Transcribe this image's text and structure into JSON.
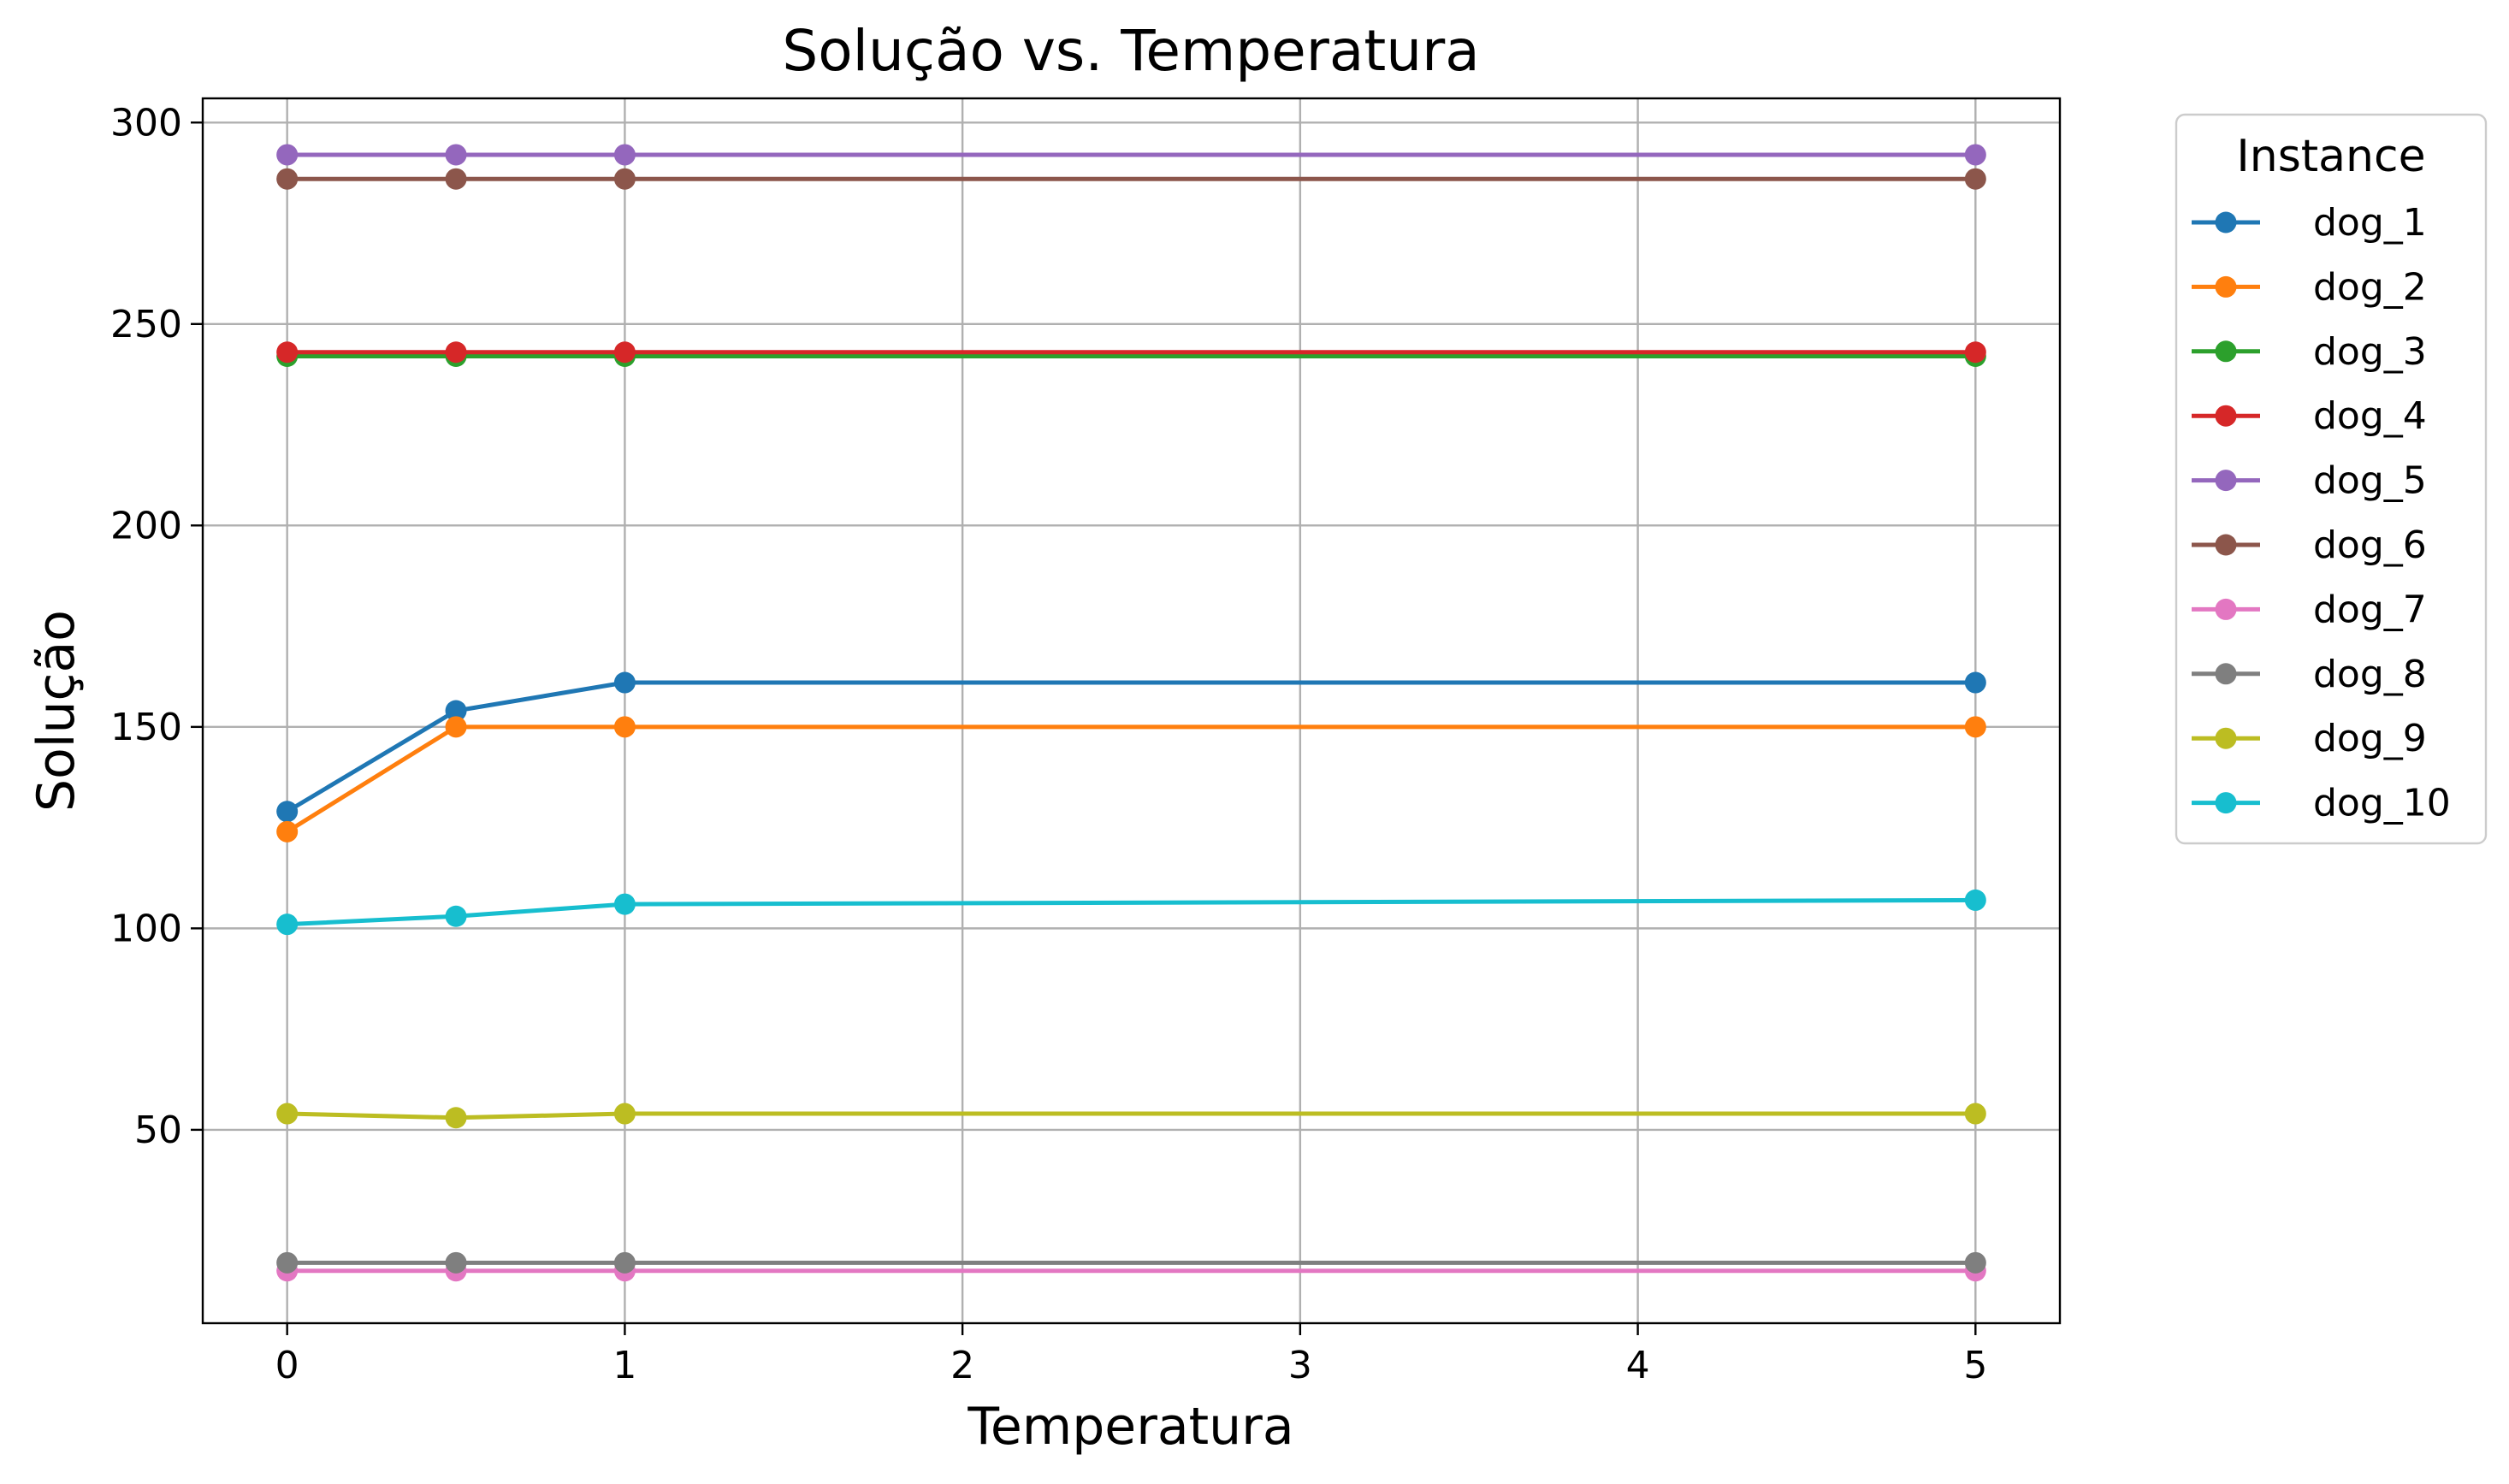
{
  "chart_data": {
    "type": "line",
    "title": "Solução vs. Temperatura",
    "xlabel": "Temperatura",
    "ylabel": "Solução",
    "x": [
      0,
      0.5,
      1,
      5
    ],
    "xlim": [
      -0.25,
      5.25
    ],
    "ylim": [
      2,
      306
    ],
    "xticks": [
      0,
      1,
      2,
      3,
      4,
      5
    ],
    "yticks": [
      50,
      100,
      150,
      200,
      250,
      300
    ],
    "grid": true,
    "legend": {
      "title": "Instance",
      "placement": "outside-right-top"
    },
    "series": [
      {
        "name": "dog_1",
        "color": "#1f77b4",
        "values": [
          129,
          154,
          161,
          161
        ]
      },
      {
        "name": "dog_2",
        "color": "#ff7f0e",
        "values": [
          124,
          150,
          150,
          150
        ]
      },
      {
        "name": "dog_3",
        "color": "#2ca02c",
        "values": [
          242,
          242,
          242,
          242
        ]
      },
      {
        "name": "dog_4",
        "color": "#d62728",
        "values": [
          243,
          243,
          243,
          243
        ]
      },
      {
        "name": "dog_5",
        "color": "#9467bd",
        "values": [
          292,
          292,
          292,
          292
        ]
      },
      {
        "name": "dog_6",
        "color": "#8c564b",
        "values": [
          286,
          286,
          286,
          286
        ]
      },
      {
        "name": "dog_7",
        "color": "#e377c2",
        "values": [
          15,
          15,
          15,
          15
        ]
      },
      {
        "name": "dog_8",
        "color": "#7f7f7f",
        "values": [
          17,
          17,
          17,
          17
        ]
      },
      {
        "name": "dog_9",
        "color": "#bcbd22",
        "values": [
          54,
          53,
          54,
          54
        ]
      },
      {
        "name": "dog_10",
        "color": "#17becf",
        "values": [
          101,
          103,
          106,
          107
        ]
      }
    ]
  }
}
